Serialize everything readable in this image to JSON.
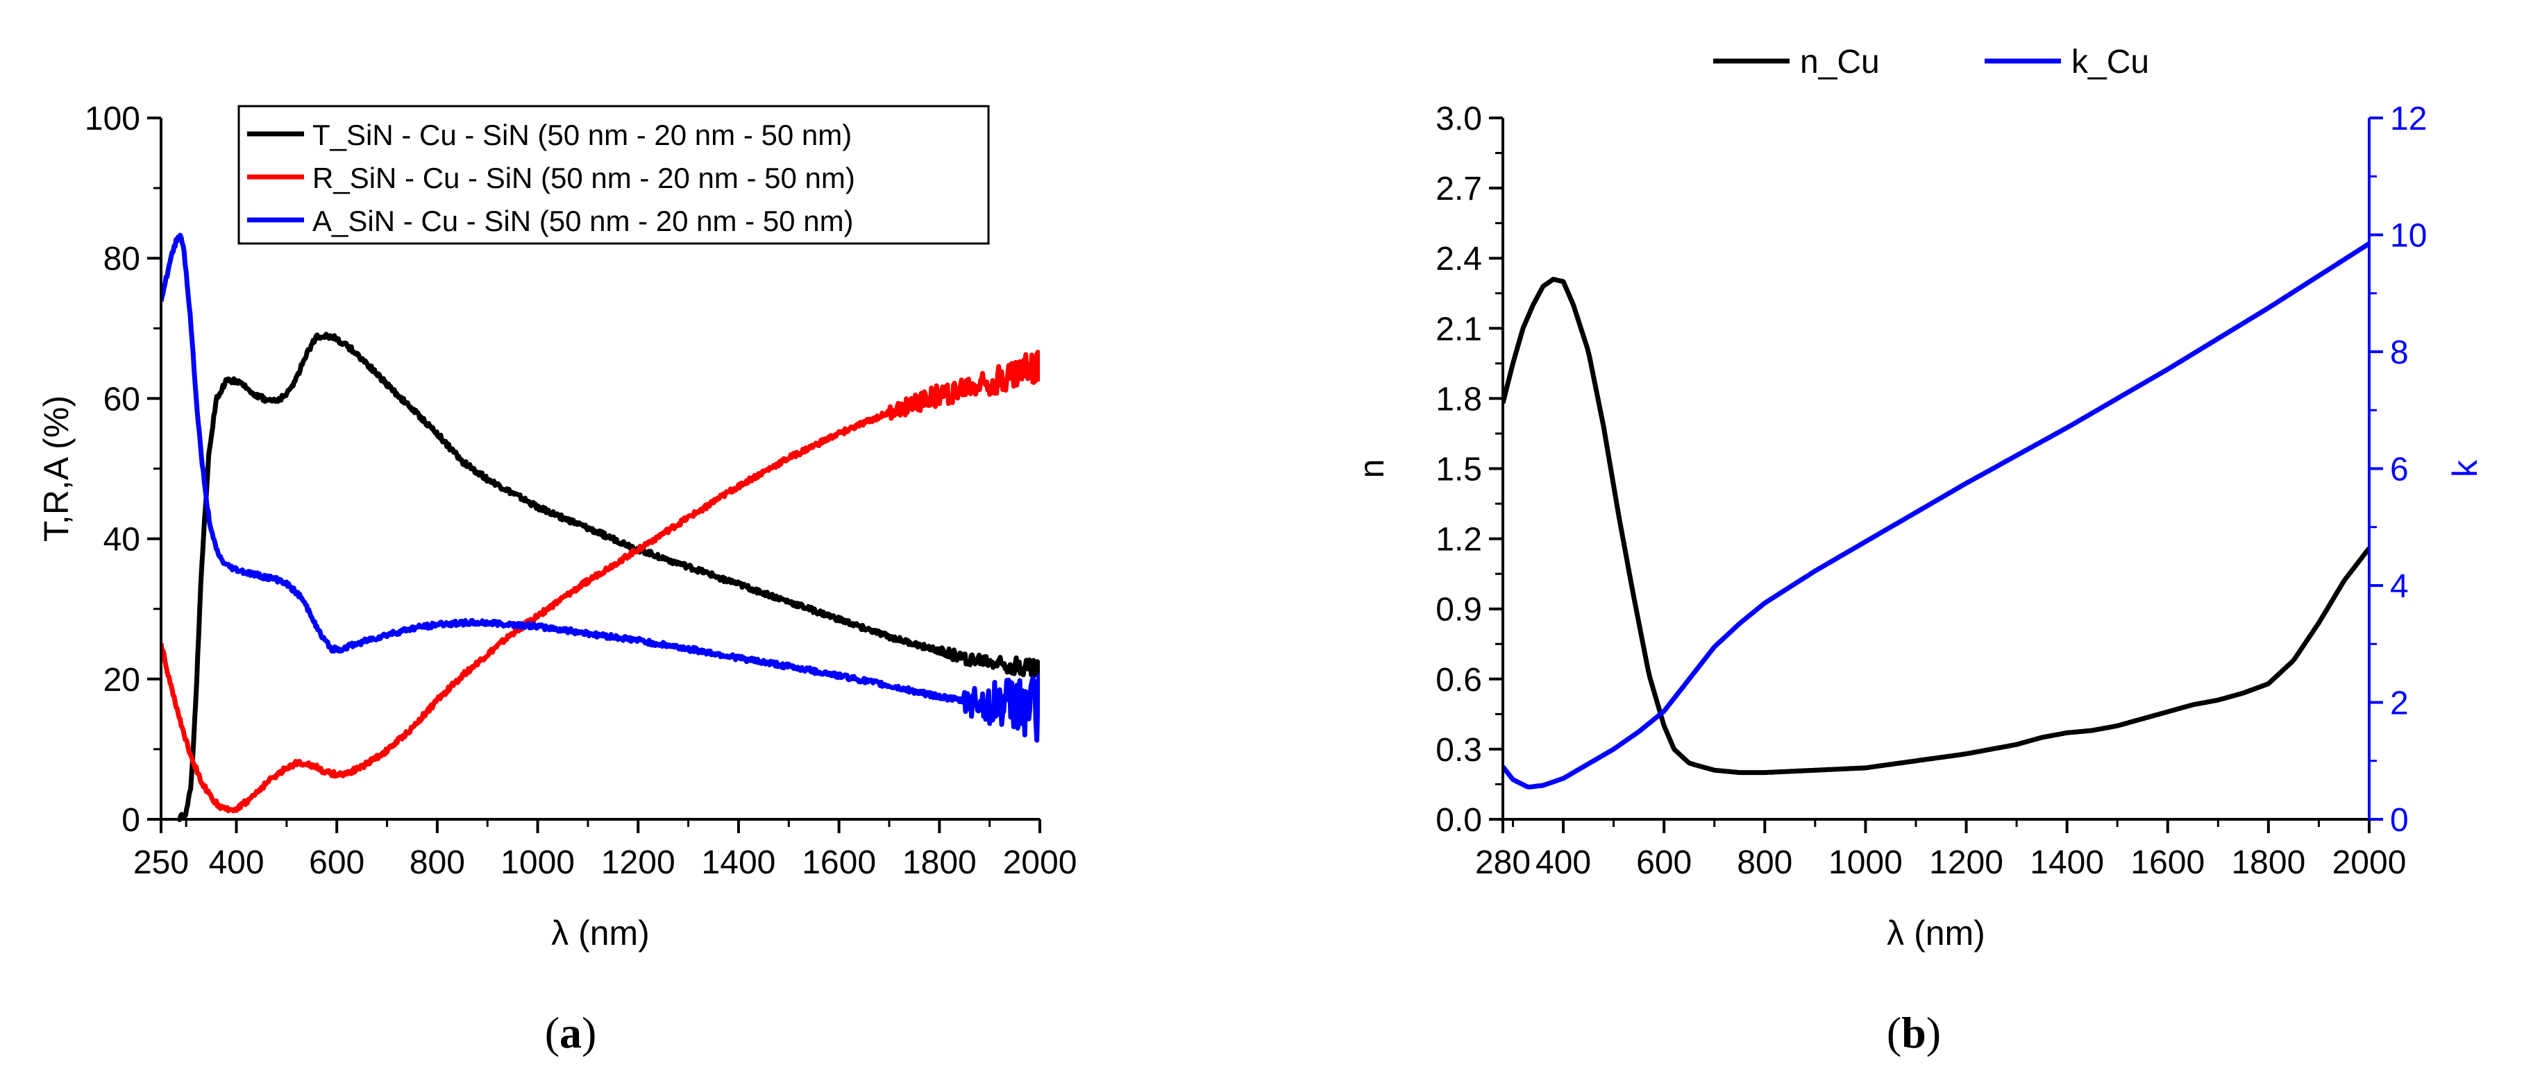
{
  "chart_data": [
    {
      "type": "line",
      "panel_label_parts": [
        "(",
        "a",
        ")"
      ],
      "xlabel": "λ (nm)",
      "ylabel": "T,R,A (%)",
      "xlim": [
        250,
        2000
      ],
      "ylim": [
        0,
        100
      ],
      "xticks": [
        250,
        400,
        600,
        800,
        1000,
        1200,
        1400,
        1600,
        1800,
        2000
      ],
      "yticks": [
        0,
        20,
        40,
        60,
        80,
        100
      ],
      "legend_position": "top",
      "series": [
        {
          "name": "T_SiN - Cu - SiN (50 nm - 20 nm - 50 nm)",
          "color": "#000000",
          "x": [
            285,
            300,
            310,
            320,
            330,
            345,
            360,
            380,
            400,
            420,
            440,
            460,
            480,
            500,
            520,
            540,
            560,
            580,
            600,
            630,
            660,
            700,
            750,
            800,
            850,
            900,
            950,
            1000,
            1100,
            1200,
            1300,
            1400,
            1500,
            1600,
            1700,
            1800,
            1850,
            1900,
            1950,
            2000
          ],
          "y": [
            0,
            1,
            5,
            18,
            35,
            52,
            60,
            62.5,
            62.5,
            61.5,
            60.5,
            59.8,
            59.7,
            60.5,
            63,
            66.5,
            68.8,
            69,
            68.5,
            67,
            65,
            62,
            58.5,
            55,
            51,
            48.5,
            46.5,
            44.5,
            41.5,
            38.5,
            36,
            33.5,
            31,
            28.5,
            26,
            24,
            23,
            22.5,
            22,
            21.5
          ],
          "noise_from": 1800,
          "noise_amp": 1.5
        },
        {
          "name": "R_SiN - Cu - SiN (50 nm - 20 nm - 50 nm)",
          "color": "#ff0000",
          "x": [
            250,
            270,
            290,
            310,
            330,
            350,
            370,
            385,
            400,
            420,
            440,
            470,
            500,
            520,
            540,
            560,
            580,
            600,
            620,
            650,
            700,
            750,
            800,
            850,
            900,
            950,
            1000,
            1050,
            1100,
            1200,
            1300,
            1400,
            1500,
            1600,
            1700,
            1800,
            1850,
            1900,
            1950,
            2000
          ],
          "y": [
            25,
            19,
            13.5,
            9,
            5.5,
            3,
            1.6,
            1.3,
            1.6,
            2.5,
            3.8,
            5.8,
            7.4,
            8,
            8,
            7.4,
            6.7,
            6.4,
            6.6,
            7.5,
            9.8,
            13,
            17,
            20.5,
            23.5,
            26.5,
            29,
            31.5,
            34,
            38.5,
            43,
            47.5,
            51.5,
            55,
            58,
            60.5,
            61.5,
            62.5,
            63.5,
            65
          ],
          "noise_from": 1700,
          "noise_amp": 2.5
        },
        {
          "name": "A_SiN - Cu - SiN (50 nm - 20 nm - 50 nm)",
          "color": "#0000ff",
          "x": [
            250,
            260,
            270,
            280,
            285,
            290,
            295,
            300,
            310,
            320,
            330,
            340,
            350,
            360,
            370,
            380,
            400,
            430,
            460,
            490,
            510,
            530,
            550,
            570,
            590,
            610,
            630,
            660,
            700,
            750,
            800,
            850,
            900,
            950,
            1000,
            1100,
            1200,
            1300,
            1400,
            1500,
            1600,
            1700,
            1800,
            1850,
            1900,
            1950,
            2000
          ],
          "y": [
            74,
            77,
            80,
            82.5,
            83.2,
            83,
            81.5,
            78,
            70,
            60,
            52,
            45.5,
            41,
            38.5,
            37,
            36.2,
            35.6,
            35,
            34.5,
            34,
            33,
            31.5,
            29,
            26,
            24.3,
            24.3,
            24.8,
            25.5,
            26.3,
            27.2,
            27.8,
            28,
            28,
            27.8,
            27.5,
            26.5,
            25.5,
            24.3,
            23,
            21.8,
            20.5,
            19,
            17.5,
            16.8,
            16.5,
            16.5,
            16
          ],
          "noise_from": 1850,
          "noise_amp": 5
        }
      ]
    },
    {
      "type": "line",
      "panel_label_parts": [
        "(",
        "b",
        ")"
      ],
      "xlabel": "λ (nm)",
      "ylabel_left": "n",
      "ylabel_right": "k",
      "xlim": [
        280,
        2000
      ],
      "ylim_left": [
        0,
        3.0
      ],
      "ylim_right": [
        0,
        12
      ],
      "xticks": [
        280,
        400,
        600,
        800,
        1000,
        1200,
        1400,
        1600,
        1800,
        2000
      ],
      "yticks_left": [
        "0.0",
        "0.3",
        "0.6",
        "0.9",
        "1.2",
        "1.5",
        "1.8",
        "2.1",
        "2.4",
        "2.7",
        "3.0"
      ],
      "yticks_right": [
        0,
        2,
        4,
        6,
        8,
        10,
        12
      ],
      "legend_position": "top",
      "series": [
        {
          "name": "n_Cu",
          "axis": "left",
          "color": "#000000",
          "x": [
            280,
            300,
            320,
            340,
            360,
            380,
            400,
            420,
            450,
            480,
            510,
            540,
            570,
            600,
            620,
            650,
            700,
            750,
            800,
            900,
            1000,
            1100,
            1200,
            1300,
            1350,
            1400,
            1450,
            1500,
            1550,
            1600,
            1650,
            1700,
            1750,
            1800,
            1850,
            1900,
            1950,
            2000
          ],
          "y": [
            1.78,
            1.95,
            2.1,
            2.2,
            2.28,
            2.31,
            2.3,
            2.2,
            2.0,
            1.68,
            1.3,
            0.95,
            0.62,
            0.4,
            0.3,
            0.24,
            0.21,
            0.2,
            0.2,
            0.21,
            0.22,
            0.25,
            0.28,
            0.32,
            0.35,
            0.37,
            0.38,
            0.4,
            0.43,
            0.46,
            0.49,
            0.51,
            0.54,
            0.58,
            0.68,
            0.84,
            1.02,
            1.16
          ]
        },
        {
          "name": "k_Cu",
          "axis": "right",
          "color": "#0000ff",
          "x": [
            280,
            300,
            330,
            360,
            400,
            450,
            500,
            550,
            600,
            650,
            700,
            750,
            800,
            900,
            1000,
            1200,
            1400,
            1600,
            1800,
            2000
          ],
          "y": [
            0.9,
            0.68,
            0.55,
            0.58,
            0.7,
            0.95,
            1.2,
            1.5,
            1.85,
            2.4,
            2.95,
            3.35,
            3.7,
            4.25,
            4.75,
            5.75,
            6.7,
            7.7,
            8.75,
            9.85
          ]
        }
      ]
    }
  ]
}
